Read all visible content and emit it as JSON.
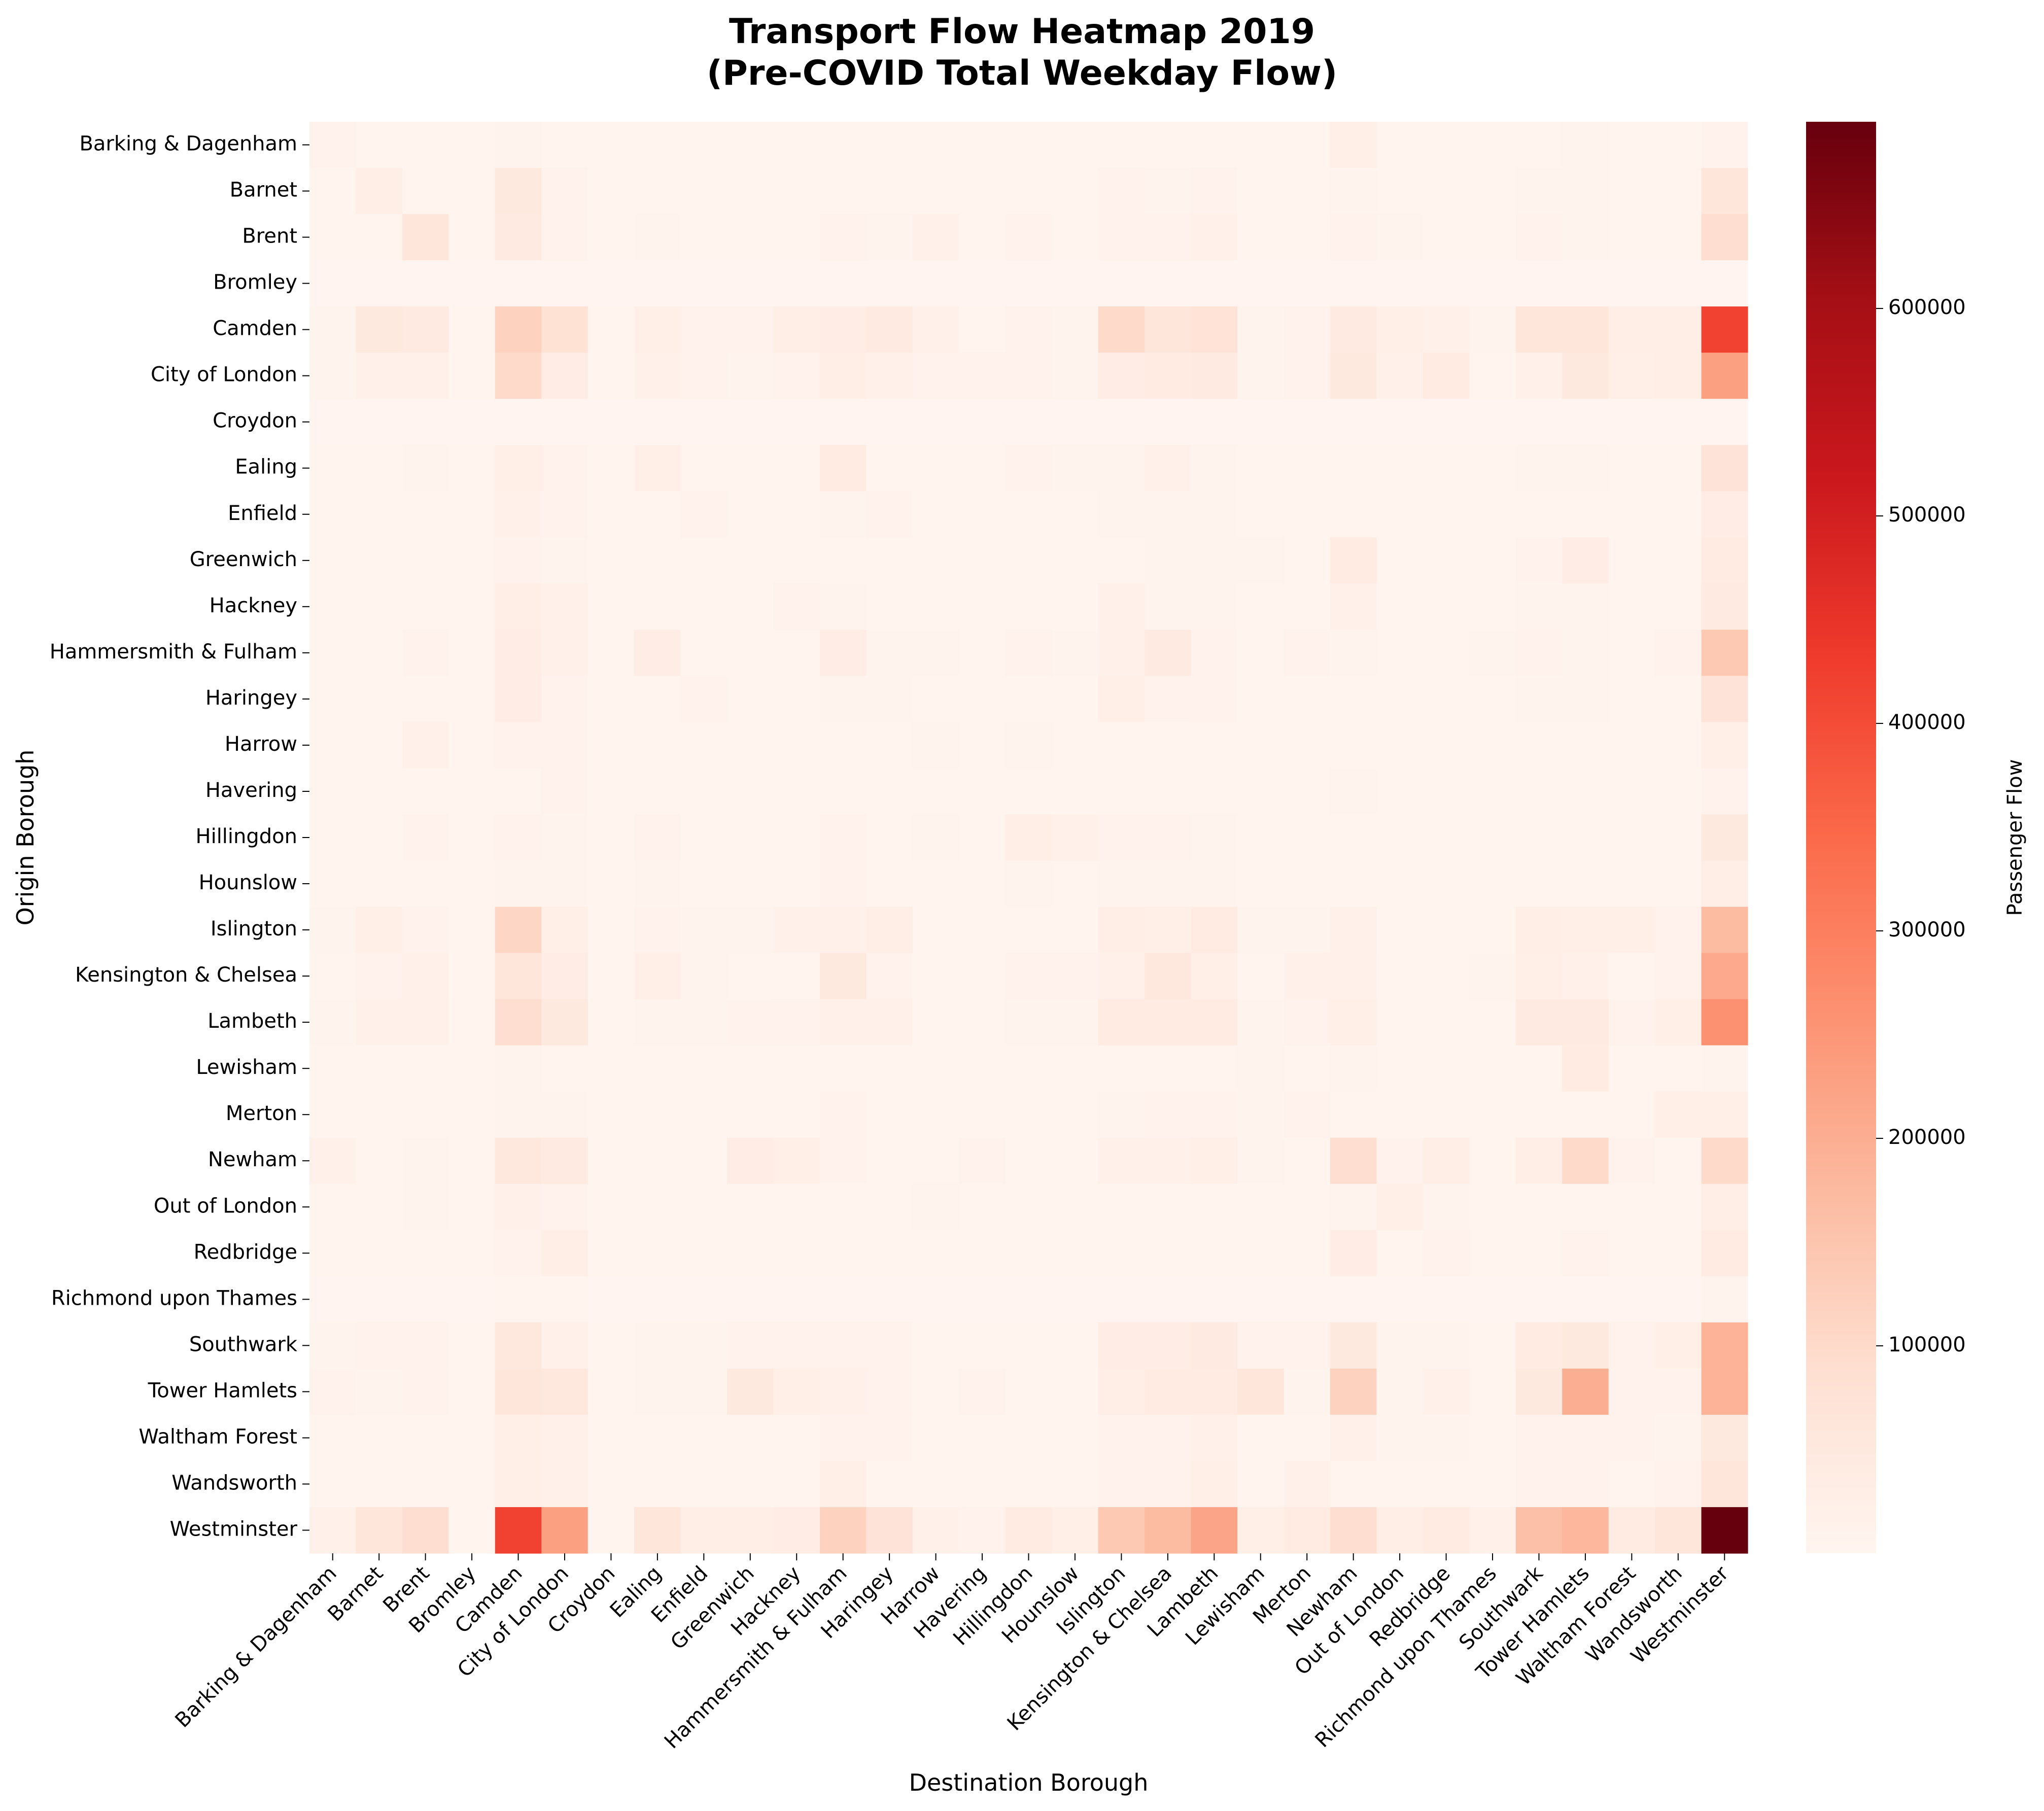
{
  "chart_data": {
    "type": "heatmap",
    "title": "Transport Flow Heatmap 2019",
    "subtitle": "(Pre-COVID Total Weekday Flow)",
    "xlabel": "Destination Borough",
    "ylabel": "Origin Borough",
    "colorbar_label": "Passenger Flow",
    "colormap": "Reds",
    "vmin": 0,
    "vmax": 690000,
    "colorbar_ticks": [
      100000,
      200000,
      300000,
      400000,
      500000,
      600000
    ],
    "colorbar_tick_labels": [
      "100000",
      "200000",
      "300000",
      "400000",
      "500000",
      "600000"
    ],
    "grid": false,
    "legend": "colorbar-right",
    "boroughs": [
      "Barking & Dagenham",
      "Barnet",
      "Brent",
      "Bromley",
      "Camden",
      "City of London",
      "Croydon",
      "Ealing",
      "Enfield",
      "Greenwich",
      "Hackney",
      "Hammersmith & Fulham",
      "Haringey",
      "Harrow",
      "Havering",
      "Hillingdon",
      "Hounslow",
      "Islington",
      "Kensington & Chelsea",
      "Lambeth",
      "Lewisham",
      "Merton",
      "Newham",
      "Out of London",
      "Redbridge",
      "Richmond upon Thames",
      "Southwark",
      "Tower Hamlets",
      "Waltham Forest",
      "Wandsworth",
      "Westminster"
    ],
    "matrix": [
      [
        15000,
        5000,
        5000,
        5000,
        8000,
        6000,
        5000,
        5000,
        5000,
        5000,
        5000,
        5000,
        5000,
        5000,
        5000,
        5000,
        5000,
        5000,
        5000,
        5000,
        5000,
        5000,
        25000,
        5000,
        5000,
        5000,
        5000,
        8000,
        6000,
        5000,
        12000
      ],
      [
        6000,
        30000,
        6000,
        5000,
        50000,
        15000,
        5000,
        6000,
        6000,
        5000,
        5000,
        6000,
        6000,
        5000,
        5000,
        5000,
        5000,
        15000,
        8000,
        15000,
        5000,
        5000,
        8000,
        5000,
        5000,
        5000,
        8000,
        8000,
        5000,
        5000,
        60000
      ],
      [
        5000,
        6000,
        60000,
        5000,
        45000,
        15000,
        5000,
        8000,
        6000,
        5000,
        5000,
        15000,
        8000,
        20000,
        5000,
        12000,
        5000,
        15000,
        15000,
        20000,
        5000,
        5000,
        12000,
        10000,
        5000,
        5000,
        12000,
        10000,
        5000,
        5000,
        90000
      ],
      [
        3000,
        3000,
        3000,
        3000,
        3000,
        3000,
        3000,
        3000,
        3000,
        3000,
        3000,
        3000,
        3000,
        3000,
        3000,
        3000,
        3000,
        3000,
        3000,
        3000,
        3000,
        3000,
        3000,
        3000,
        3000,
        3000,
        3000,
        3000,
        3000,
        3000,
        3000
      ],
      [
        8000,
        50000,
        45000,
        5000,
        120000,
        80000,
        5000,
        25000,
        15000,
        12000,
        30000,
        35000,
        45000,
        18000,
        5000,
        15000,
        10000,
        100000,
        60000,
        75000,
        10000,
        15000,
        45000,
        25000,
        20000,
        8000,
        60000,
        60000,
        30000,
        30000,
        420000
      ],
      [
        8000,
        20000,
        20000,
        5000,
        100000,
        35000,
        5000,
        18000,
        12000,
        10000,
        15000,
        30000,
        18000,
        12000,
        15000,
        12000,
        10000,
        35000,
        40000,
        45000,
        8000,
        15000,
        50000,
        20000,
        40000,
        5000,
        18000,
        50000,
        25000,
        30000,
        230000
      ],
      [
        2500,
        2500,
        2500,
        2500,
        2500,
        2500,
        2500,
        2500,
        2500,
        2500,
        2500,
        2500,
        2500,
        2500,
        2500,
        2500,
        2500,
        2500,
        2500,
        2500,
        2500,
        2500,
        2500,
        2500,
        2500,
        2500,
        2500,
        2500,
        2500,
        2500,
        2500
      ],
      [
        5000,
        5000,
        8000,
        5000,
        25000,
        15000,
        5000,
        25000,
        5000,
        5000,
        5000,
        40000,
        5000,
        5000,
        5000,
        15000,
        10000,
        8000,
        20000,
        10000,
        5000,
        5000,
        6000,
        5000,
        5000,
        5000,
        8000,
        8000,
        5000,
        5000,
        70000
      ],
      [
        5000,
        5000,
        5000,
        5000,
        18000,
        12000,
        5000,
        5000,
        12000,
        5000,
        5000,
        8000,
        12000,
        5000,
        5000,
        5000,
        5000,
        10000,
        8000,
        10000,
        5000,
        5000,
        5000,
        5000,
        5000,
        5000,
        5000,
        5000,
        5000,
        5000,
        35000
      ],
      [
        5000,
        5000,
        5000,
        5000,
        15000,
        8000,
        5000,
        5000,
        5000,
        5000,
        5000,
        5000,
        5000,
        5000,
        5000,
        5000,
        5000,
        5000,
        8000,
        10000,
        8000,
        5000,
        40000,
        5000,
        5000,
        5000,
        12000,
        35000,
        5000,
        5000,
        40000
      ],
      [
        5000,
        5000,
        5000,
        5000,
        30000,
        20000,
        5000,
        5000,
        5000,
        5000,
        15000,
        8000,
        5000,
        5000,
        5000,
        5000,
        5000,
        20000,
        10000,
        10000,
        5000,
        5000,
        18000,
        5000,
        5000,
        5000,
        10000,
        8000,
        5000,
        5000,
        45000
      ],
      [
        5000,
        6000,
        12000,
        5000,
        35000,
        20000,
        5000,
        35000,
        5000,
        5000,
        5000,
        35000,
        8000,
        8000,
        5000,
        12000,
        10000,
        18000,
        45000,
        15000,
        5000,
        12000,
        10000,
        5000,
        5000,
        10000,
        12000,
        10000,
        6000,
        15000,
        140000
      ],
      [
        5000,
        5000,
        5000,
        5000,
        35000,
        12000,
        5000,
        5000,
        15000,
        5000,
        5000,
        8000,
        8000,
        5000,
        5000,
        5000,
        5000,
        25000,
        12000,
        15000,
        5000,
        5000,
        6000,
        5000,
        5000,
        5000,
        10000,
        8000,
        5000,
        5000,
        70000
      ],
      [
        5000,
        5000,
        20000,
        5000,
        15000,
        12000,
        5000,
        5000,
        5000,
        5000,
        5000,
        5000,
        5000,
        10000,
        5000,
        10000,
        5000,
        5000,
        5000,
        5000,
        5000,
        5000,
        5000,
        5000,
        5000,
        5000,
        5000,
        5000,
        5000,
        5000,
        25000
      ],
      [
        5000,
        5000,
        5000,
        5000,
        5000,
        12000,
        5000,
        5000,
        5000,
        5000,
        5000,
        5000,
        5000,
        5000,
        5000,
        5000,
        5000,
        5000,
        5000,
        5000,
        5000,
        5000,
        8000,
        5000,
        5000,
        5000,
        5000,
        5000,
        5000,
        5000,
        15000
      ],
      [
        5000,
        5000,
        12000,
        5000,
        15000,
        10000,
        5000,
        15000,
        5000,
        5000,
        5000,
        15000,
        5000,
        10000,
        5000,
        30000,
        18000,
        12000,
        15000,
        8000,
        5000,
        5000,
        5000,
        5000,
        5000,
        5000,
        5000,
        5000,
        5000,
        5000,
        50000
      ],
      [
        5000,
        5000,
        5000,
        5000,
        10000,
        8000,
        5000,
        10000,
        5000,
        5000,
        5000,
        12000,
        5000,
        5000,
        5000,
        10000,
        6000,
        8000,
        10000,
        8000,
        5000,
        5000,
        5000,
        5000,
        5000,
        5000,
        5000,
        5000,
        5000,
        5000,
        30000
      ],
      [
        8000,
        25000,
        15000,
        5000,
        110000,
        25000,
        5000,
        15000,
        10000,
        8000,
        18000,
        20000,
        30000,
        5000,
        5000,
        6000,
        5000,
        30000,
        25000,
        40000,
        8000,
        10000,
        20000,
        5000,
        5000,
        5000,
        30000,
        25000,
        25000,
        15000,
        170000
      ],
      [
        5000,
        12000,
        18000,
        5000,
        60000,
        35000,
        5000,
        25000,
        8000,
        6000,
        6000,
        50000,
        15000,
        5000,
        5000,
        15000,
        15000,
        18000,
        55000,
        25000,
        5000,
        20000,
        18000,
        5000,
        5000,
        8000,
        25000,
        20000,
        6000,
        15000,
        210000
      ],
      [
        8000,
        18000,
        20000,
        5000,
        90000,
        50000,
        5000,
        10000,
        8000,
        12000,
        15000,
        20000,
        20000,
        5000,
        5000,
        8000,
        8000,
        40000,
        40000,
        40000,
        8000,
        15000,
        25000,
        5000,
        5000,
        5000,
        45000,
        45000,
        12000,
        25000,
        260000
      ],
      [
        5000,
        5000,
        5000,
        5000,
        8000,
        6000,
        5000,
        5000,
        5000,
        5000,
        5000,
        5000,
        5000,
        5000,
        5000,
        5000,
        5000,
        5000,
        5000,
        5000,
        10000,
        5000,
        10000,
        5000,
        5000,
        5000,
        5000,
        40000,
        5000,
        5000,
        10000
      ],
      [
        5000,
        5000,
        5000,
        5000,
        10000,
        8000,
        5000,
        5000,
        5000,
        5000,
        5000,
        12000,
        5000,
        5000,
        5000,
        5000,
        5000,
        8000,
        15000,
        15000,
        8000,
        15000,
        6000,
        5000,
        5000,
        5000,
        5000,
        5000,
        5000,
        25000,
        25000
      ],
      [
        20000,
        5000,
        10000,
        5000,
        55000,
        45000,
        5000,
        5000,
        5000,
        35000,
        25000,
        15000,
        6000,
        5000,
        15000,
        5000,
        5000,
        20000,
        20000,
        25000,
        10000,
        5000,
        90000,
        15000,
        30000,
        5000,
        30000,
        100000,
        15000,
        5000,
        100000
      ],
      [
        5000,
        5000,
        10000,
        5000,
        20000,
        15000,
        5000,
        5000,
        5000,
        5000,
        5000,
        6000,
        5000,
        8000,
        5000,
        5000,
        5000,
        5000,
        5000,
        5000,
        5000,
        5000,
        10000,
        25000,
        8000,
        5000,
        5000,
        5000,
        5000,
        5000,
        30000
      ],
      [
        5000,
        5000,
        5000,
        5000,
        15000,
        30000,
        5000,
        5000,
        5000,
        5000,
        5000,
        6000,
        5000,
        5000,
        5000,
        5000,
        5000,
        5000,
        5000,
        5000,
        5000,
        5000,
        35000,
        5000,
        15000,
        5000,
        5000,
        15000,
        5000,
        5000,
        40000
      ],
      [
        4000,
        4000,
        4000,
        4000,
        6000,
        6000,
        4000,
        4000,
        4000,
        4000,
        4000,
        4000,
        4000,
        4000,
        4000,
        4000,
        4000,
        4000,
        4000,
        4000,
        4000,
        4000,
        4000,
        4000,
        4000,
        4000,
        4000,
        4000,
        4000,
        4000,
        8000
      ],
      [
        8000,
        12000,
        12000,
        5000,
        55000,
        20000,
        5000,
        10000,
        8000,
        15000,
        15000,
        15000,
        12000,
        5000,
        5000,
        5000,
        5000,
        35000,
        35000,
        45000,
        15000,
        15000,
        50000,
        8000,
        10000,
        5000,
        40000,
        50000,
        12000,
        25000,
        190000
      ],
      [
        15000,
        10000,
        12000,
        5000,
        60000,
        55000,
        5000,
        10000,
        8000,
        50000,
        25000,
        20000,
        15000,
        5000,
        12000,
        5000,
        5000,
        30000,
        40000,
        40000,
        60000,
        8000,
        120000,
        8000,
        20000,
        5000,
        50000,
        200000,
        15000,
        15000,
        190000
      ],
      [
        5000,
        5000,
        5000,
        5000,
        25000,
        20000,
        5000,
        5000,
        5000,
        5000,
        5000,
        12000,
        15000,
        5000,
        5000,
        5000,
        5000,
        15000,
        12000,
        18000,
        5000,
        5000,
        20000,
        8000,
        10000,
        5000,
        12000,
        12000,
        15000,
        10000,
        50000
      ],
      [
        5000,
        5000,
        5000,
        5000,
        25000,
        20000,
        5000,
        5000,
        5000,
        5000,
        5000,
        25000,
        5000,
        5000,
        5000,
        5000,
        5000,
        15000,
        15000,
        25000,
        5000,
        20000,
        5000,
        5000,
        5000,
        5000,
        15000,
        15000,
        5000,
        15000,
        60000
      ],
      [
        20000,
        60000,
        90000,
        5000,
        420000,
        230000,
        5000,
        60000,
        30000,
        30000,
        35000,
        120000,
        70000,
        20000,
        15000,
        40000,
        25000,
        140000,
        170000,
        220000,
        25000,
        40000,
        90000,
        30000,
        40000,
        20000,
        160000,
        180000,
        40000,
        60000,
        690000
      ]
    ]
  }
}
